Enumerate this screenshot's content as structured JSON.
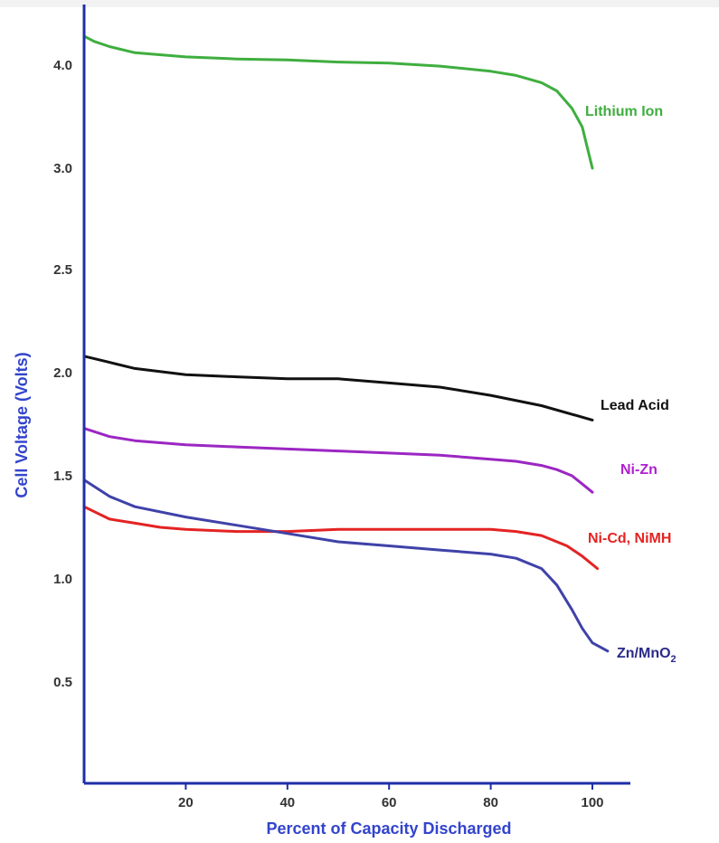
{
  "chart_data": {
    "type": "line",
    "title": "",
    "xlabel": "Percent of Capacity Discharged",
    "ylabel": "Cell Voltage (Volts)",
    "xlim": [
      0,
      105
    ],
    "ylim": [
      0,
      4.3
    ],
    "x_ticks": [
      {
        "value": 20,
        "label": "20"
      },
      {
        "value": 40,
        "label": "40"
      },
      {
        "value": 60,
        "label": "60"
      },
      {
        "value": 80,
        "label": "80"
      },
      {
        "value": 100,
        "label": "100"
      }
    ],
    "y_ticks": [
      {
        "value": 0.5,
        "label": "0.5"
      },
      {
        "value": 1.0,
        "label": "1.0"
      },
      {
        "value": 1.5,
        "label": "1.5"
      },
      {
        "value": 2.0,
        "label": "2.0"
      },
      {
        "value": 2.5,
        "label": "2.5"
      },
      {
        "value": 3.0,
        "label": "3.0"
      },
      {
        "value": 4.0,
        "label": "4.0"
      }
    ],
    "y_tick_note": "tick labels are printed as shown (0.5 … 2.5, 3.0, 4.0)",
    "grid": false,
    "axis_color": "#1f2fa8",
    "axis_title_color": "#3344cc",
    "series": [
      {
        "name": "Lithium Ion",
        "color": "#3fae3f",
        "label_color": "#3fae3f",
        "x": [
          0,
          2,
          5,
          10,
          20,
          30,
          40,
          50,
          60,
          70,
          80,
          85,
          90,
          93,
          96,
          98,
          100
        ],
        "y": [
          4.28,
          4.23,
          4.18,
          4.12,
          4.08,
          4.06,
          4.05,
          4.03,
          4.02,
          3.99,
          3.94,
          3.9,
          3.83,
          3.75,
          3.58,
          3.4,
          3.0
        ]
      },
      {
        "name": "Lead Acid",
        "color": "#111111",
        "label_color": "#111111",
        "x": [
          0,
          5,
          10,
          20,
          30,
          40,
          50,
          60,
          70,
          80,
          90,
          100
        ],
        "y": [
          2.08,
          2.05,
          2.02,
          1.99,
          1.98,
          1.97,
          1.97,
          1.95,
          1.93,
          1.89,
          1.84,
          1.77
        ]
      },
      {
        "name": "Ni-Zn",
        "color": "#9b27c2",
        "label_color": "#b020d0",
        "x": [
          0,
          5,
          10,
          20,
          30,
          40,
          50,
          60,
          70,
          80,
          85,
          90,
          93,
          96,
          98,
          100
        ],
        "y": [
          1.73,
          1.69,
          1.67,
          1.65,
          1.64,
          1.63,
          1.62,
          1.61,
          1.6,
          1.58,
          1.57,
          1.55,
          1.53,
          1.5,
          1.46,
          1.42
        ]
      },
      {
        "name": "Ni-Cd,  NiMH",
        "color": "#e42323",
        "label_color": "#e42323",
        "x": [
          0,
          5,
          10,
          15,
          20,
          30,
          40,
          50,
          60,
          70,
          80,
          85,
          90,
          95,
          98,
          101
        ],
        "y": [
          1.35,
          1.29,
          1.27,
          1.25,
          1.24,
          1.23,
          1.23,
          1.24,
          1.24,
          1.24,
          1.24,
          1.23,
          1.21,
          1.16,
          1.11,
          1.05
        ]
      },
      {
        "name": "Zn/MnO",
        "name_subscript": "2",
        "color": "#3f42a8",
        "label_color": "#2a2a8a",
        "x": [
          0,
          5,
          10,
          20,
          30,
          40,
          50,
          60,
          70,
          80,
          85,
          90,
          93,
          96,
          98,
          100,
          103
        ],
        "y": [
          1.48,
          1.4,
          1.35,
          1.3,
          1.26,
          1.22,
          1.18,
          1.16,
          1.14,
          1.12,
          1.1,
          1.05,
          0.97,
          0.85,
          0.76,
          0.69,
          0.65
        ]
      }
    ]
  }
}
